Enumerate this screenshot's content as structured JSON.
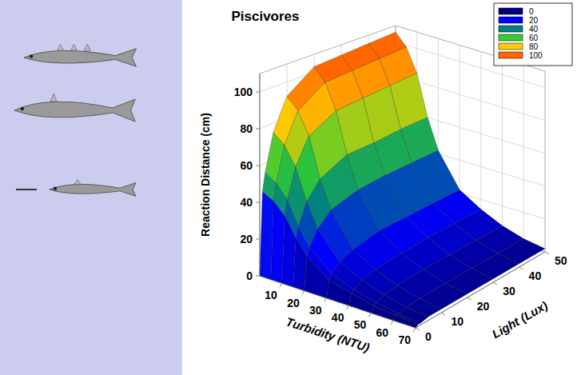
{
  "chart_data": {
    "type": "surface",
    "title": "Piscivores",
    "x_label": "Turbidity (NTU)",
    "y_label": "Light (Lux)",
    "z_label": "Reaction Distance (cm)",
    "x": [
      0,
      5,
      10,
      15,
      20,
      30,
      40,
      50,
      60,
      70
    ],
    "y": [
      0,
      1,
      2,
      5,
      10,
      20,
      30,
      40,
      50
    ],
    "z": [
      [
        0,
        45,
        55,
        75,
        92,
        103,
        104,
        105,
        106
      ],
      [
        0,
        42,
        51,
        70,
        86,
        96,
        97,
        98,
        99
      ],
      [
        0,
        36,
        44,
        60,
        74,
        82,
        83,
        84,
        85
      ],
      [
        0,
        26,
        31,
        43,
        52,
        59,
        59,
        60,
        60
      ],
      [
        0,
        18,
        22,
        30,
        37,
        41,
        42,
        42,
        42
      ],
      [
        0,
        9,
        12,
        16,
        19,
        22,
        22,
        22,
        22
      ],
      [
        0,
        6,
        7,
        10,
        12,
        13,
        14,
        14,
        14
      ],
      [
        0,
        3,
        4,
        6,
        7,
        8,
        8,
        8,
        8
      ],
      [
        0,
        2,
        2,
        3,
        4,
        4,
        4,
        4,
        4
      ],
      [
        0,
        1,
        1,
        2,
        2,
        2,
        2,
        2,
        2
      ]
    ],
    "xlim": [
      0,
      70
    ],
    "xticks": [
      10,
      20,
      30,
      40,
      50,
      60,
      70
    ],
    "ylim": [
      0,
      50
    ],
    "yticks": [
      0,
      10,
      20,
      30,
      40,
      50
    ],
    "zlim": [
      0,
      110
    ],
    "zticks": [
      0,
      20,
      40,
      60,
      80,
      100
    ],
    "grid": true,
    "legend": "top-right",
    "colorbar_ticks": [
      0,
      20,
      40,
      60,
      80,
      100
    ],
    "colors": [
      "#000080",
      "#0000ff",
      "#008080",
      "#33cc33",
      "#ffcc00",
      "#ff6600"
    ]
  }
}
